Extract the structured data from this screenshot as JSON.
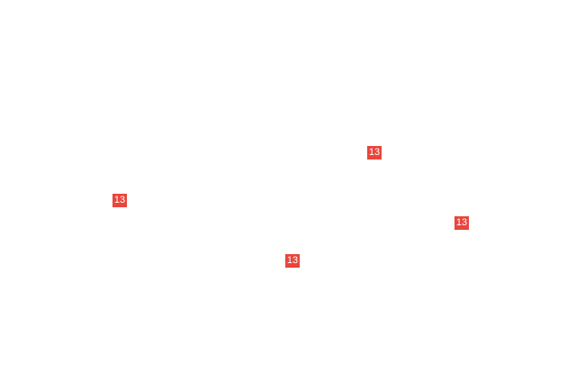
{
  "badge_color": "#e8453c",
  "markers": [
    {
      "label": "13"
    },
    {
      "label": "13"
    },
    {
      "label": "13"
    },
    {
      "label": "13"
    }
  ]
}
